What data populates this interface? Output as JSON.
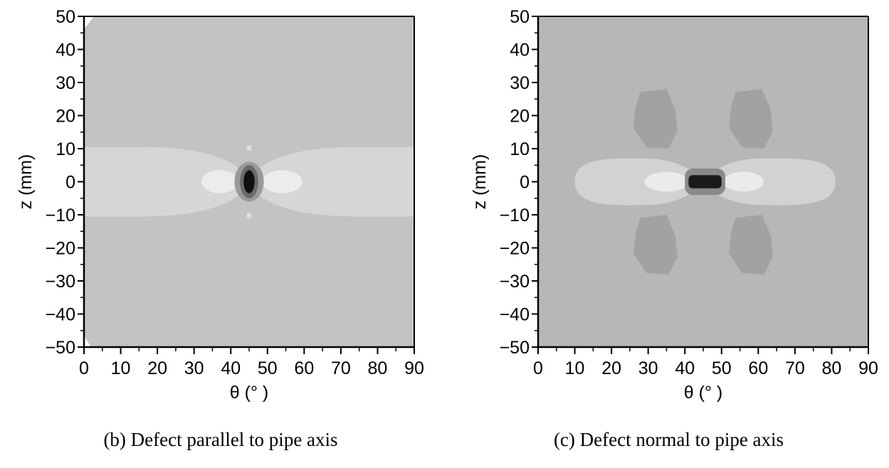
{
  "chart_data": [
    {
      "type": "heatmap",
      "caption": "(b) Defect parallel to pipe axis",
      "xlabel": "θ (°  )",
      "ylabel": "z (mm)",
      "xlim": [
        0,
        90
      ],
      "ylim": [
        -50,
        50
      ],
      "xticks": [
        0,
        10,
        20,
        30,
        40,
        50,
        60,
        70,
        80,
        90
      ],
      "yticks": [
        50,
        40,
        30,
        20,
        10,
        0,
        -10,
        -20,
        -30,
        -40,
        -50
      ],
      "tick_labels_x": [
        "0",
        "10",
        "20",
        "30",
        "40",
        "50",
        "60",
        "70",
        "80",
        "90"
      ],
      "tick_labels_y": [
        "50",
        "40",
        "30",
        "20",
        "10",
        "0",
        "−10",
        "−20",
        "−30",
        "−40",
        "−50"
      ],
      "background_level": "#c3c3c3",
      "regions": [
        {
          "name": "lobe-light",
          "color": "#d6d6d6",
          "center": [
            45,
            0
          ],
          "x_extent": [
            0,
            90
          ],
          "z_half_width_max": 10.5
        },
        {
          "name": "spot-left",
          "color": "#ececec",
          "center": [
            37,
            0
          ],
          "x_extent": [
            32,
            42
          ],
          "z_half_width": 3.5
        },
        {
          "name": "spot-right",
          "color": "#ececec",
          "center": [
            54,
            0
          ],
          "x_extent": [
            49,
            60
          ],
          "z_half_width": 3.5
        },
        {
          "name": "defect-outer",
          "color": "#9a9a9a",
          "center": [
            45,
            0
          ],
          "x_extent": [
            41,
            49
          ],
          "z_extent": [
            -6,
            6
          ]
        },
        {
          "name": "defect-mid",
          "color": "#6a6a6a",
          "center": [
            45,
            0
          ],
          "x_extent": [
            42.5,
            47.5
          ],
          "z_extent": [
            -5,
            5
          ]
        },
        {
          "name": "defect-core",
          "color": "#101010",
          "center": [
            45,
            0
          ],
          "x_extent": [
            43.5,
            46.5
          ],
          "z_extent": [
            -3.5,
            3.5
          ]
        }
      ]
    },
    {
      "type": "heatmap",
      "caption": "(c) Defect normal to pipe axis",
      "xlabel": "θ (°  )",
      "ylabel": "z (mm)",
      "xlim": [
        0,
        90
      ],
      "ylim": [
        -50,
        50
      ],
      "xticks": [
        0,
        10,
        20,
        30,
        40,
        50,
        60,
        70,
        80,
        90
      ],
      "yticks": [
        50,
        40,
        30,
        20,
        10,
        0,
        -10,
        -20,
        -30,
        -40,
        -50
      ],
      "tick_labels_x": [
        "0",
        "10",
        "20",
        "30",
        "40",
        "50",
        "60",
        "70",
        "80",
        "90"
      ],
      "tick_labels_y": [
        "50",
        "40",
        "30",
        "20",
        "10",
        "0",
        "−10",
        "−20",
        "−30",
        "−40",
        "−50"
      ],
      "background_level": "#b7b7b7",
      "regions": [
        {
          "name": "lobe-light",
          "color": "#d2d2d2",
          "center": [
            45,
            0
          ],
          "x_extent": [
            10,
            81
          ],
          "z_half_width_max": 7
        },
        {
          "name": "spot-left",
          "color": "#ebebeb",
          "center": [
            35,
            0
          ],
          "x_extent": [
            28,
            40
          ],
          "z_half_width": 3
        },
        {
          "name": "spot-right",
          "color": "#ebebeb",
          "center": [
            56,
            0
          ],
          "x_extent": [
            51,
            62
          ],
          "z_half_width": 3
        },
        {
          "name": "quad-upper-left",
          "color": "#a2a2a2",
          "center": [
            32,
            20
          ],
          "x_extent": [
            26,
            38
          ],
          "z_extent": [
            10,
            28
          ]
        },
        {
          "name": "quad-upper-right",
          "color": "#a2a2a2",
          "center": [
            57,
            20
          ],
          "x_extent": [
            52,
            64
          ],
          "z_extent": [
            10,
            28
          ]
        },
        {
          "name": "quad-lower-left",
          "color": "#a2a2a2",
          "center": [
            32,
            -20
          ],
          "x_extent": [
            26,
            38
          ],
          "z_extent": [
            -28,
            -10
          ]
        },
        {
          "name": "quad-lower-right",
          "color": "#a2a2a2",
          "center": [
            57,
            -20
          ],
          "x_extent": [
            52,
            64
          ],
          "z_extent": [
            -28,
            -10
          ]
        },
        {
          "name": "defect-outer",
          "color": "#8a8a8a",
          "center": [
            45.5,
            0
          ],
          "x_extent": [
            40,
            51
          ],
          "z_extent": [
            -4,
            4
          ]
        },
        {
          "name": "defect-core",
          "color": "#1a1a1a",
          "center": [
            45.5,
            0
          ],
          "x_extent": [
            41,
            50
          ],
          "z_extent": [
            -2,
            2
          ]
        }
      ]
    }
  ]
}
